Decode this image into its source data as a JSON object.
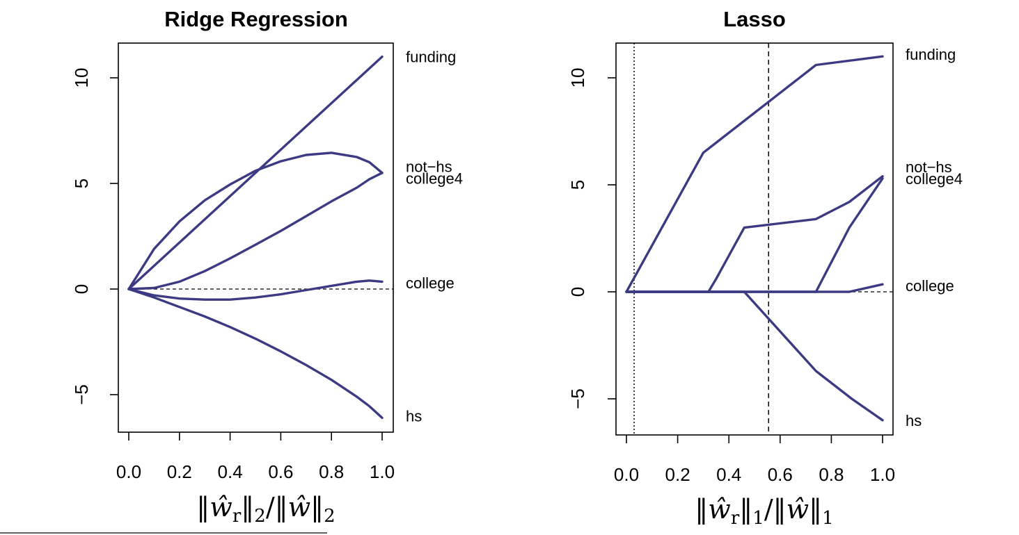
{
  "colors": {
    "series": "#3b3a83",
    "axis": "#000000",
    "background": "#ffffff"
  },
  "chart_data": [
    {
      "type": "line",
      "title": "Ridge Regression",
      "xlabel": "||ŵ_r||_2/||ŵ||_2",
      "ylabel": "",
      "xlim": [
        0.0,
        1.0
      ],
      "ylim": [
        -6.8,
        11.7
      ],
      "x_ticks": [
        "0.0",
        "0.2",
        "0.4",
        "0.6",
        "0.8",
        "1.0"
      ],
      "y_ticks": [
        "−5",
        "0",
        "5",
        "10"
      ],
      "reference_line": {
        "y": 0,
        "style": "dashed"
      },
      "grid": false,
      "series": [
        {
          "name": "funding",
          "x": [
            0.0,
            0.2,
            0.4,
            0.6,
            0.8,
            1.0
          ],
          "y": [
            0.0,
            2.2,
            4.4,
            6.6,
            8.8,
            11.0
          ]
        },
        {
          "name": "not–hs",
          "x": [
            0.0,
            0.1,
            0.2,
            0.3,
            0.4,
            0.5,
            0.6,
            0.7,
            0.8,
            0.9,
            0.95,
            1.0
          ],
          "y": [
            0.0,
            1.9,
            3.2,
            4.2,
            4.95,
            5.6,
            6.05,
            6.35,
            6.45,
            6.25,
            6.0,
            5.5
          ]
        },
        {
          "name": "college4",
          "x": [
            0.0,
            0.1,
            0.2,
            0.3,
            0.4,
            0.5,
            0.6,
            0.7,
            0.8,
            0.9,
            0.95,
            1.0
          ],
          "y": [
            0.0,
            0.05,
            0.35,
            0.85,
            1.45,
            2.1,
            2.75,
            3.45,
            4.15,
            4.8,
            5.2,
            5.5
          ]
        },
        {
          "name": "college",
          "x": [
            0.0,
            0.1,
            0.2,
            0.3,
            0.4,
            0.5,
            0.6,
            0.7,
            0.8,
            0.9,
            0.95,
            1.0
          ],
          "y": [
            0.0,
            -0.3,
            -0.45,
            -0.5,
            -0.5,
            -0.4,
            -0.25,
            -0.05,
            0.15,
            0.35,
            0.4,
            0.35
          ]
        },
        {
          "name": "hs",
          "x": [
            0.0,
            0.1,
            0.2,
            0.3,
            0.4,
            0.5,
            0.6,
            0.7,
            0.8,
            0.9,
            0.95,
            1.0
          ],
          "y": [
            0.0,
            -0.4,
            -0.85,
            -1.3,
            -1.8,
            -2.35,
            -2.95,
            -3.6,
            -4.3,
            -5.1,
            -5.55,
            -6.1
          ]
        }
      ],
      "end_labels": [
        {
          "text": "funding",
          "y": 11.0
        },
        {
          "text": "not−hs",
          "y": 5.8
        },
        {
          "text": "college4",
          "y": 5.25
        },
        {
          "text": "college",
          "y": 0.3
        },
        {
          "text": "hs",
          "y": -6.0
        }
      ]
    },
    {
      "type": "line",
      "title": "Lasso",
      "xlabel": "||ŵ_r||_1/||ŵ||_1",
      "ylabel": "",
      "xlim": [
        0.0,
        1.0
      ],
      "ylim": [
        -6.6,
        11.7
      ],
      "x_ticks": [
        "0.0",
        "0.2",
        "0.4",
        "0.6",
        "0.8",
        "1.0"
      ],
      "y_ticks": [
        "−5",
        "0",
        "5",
        "10"
      ],
      "reference_line": {
        "y": 0,
        "style": "dashed"
      },
      "vertical_lines": [
        {
          "x": 0.03,
          "style": "dotted"
        },
        {
          "x": 0.555,
          "style": "dashed"
        }
      ],
      "grid": false,
      "series": [
        {
          "name": "funding",
          "x": [
            0.0,
            0.3,
            0.74,
            1.0
          ],
          "y": [
            0.0,
            6.5,
            10.6,
            11.0
          ]
        },
        {
          "name": "not–hs",
          "x": [
            0.0,
            0.32,
            0.35,
            0.46,
            0.74,
            0.87,
            1.0
          ],
          "y": [
            0.0,
            0.0,
            0.6,
            3.0,
            3.4,
            4.2,
            5.4
          ]
        },
        {
          "name": "college4",
          "x": [
            0.0,
            0.74,
            0.87,
            1.0
          ],
          "y": [
            0.0,
            0.0,
            3.0,
            5.3
          ]
        },
        {
          "name": "college",
          "x": [
            0.0,
            0.87,
            1.0
          ],
          "y": [
            0.0,
            0.0,
            0.35
          ]
        },
        {
          "name": "hs",
          "x": [
            0.0,
            0.46,
            0.74,
            0.88,
            1.0
          ],
          "y": [
            0.0,
            0.0,
            -3.7,
            -5.0,
            -6.0
          ]
        }
      ],
      "end_labels": [
        {
          "text": "funding",
          "y": 11.1
        },
        {
          "text": "not−hs",
          "y": 5.85
        },
        {
          "text": "college4",
          "y": 5.3
        },
        {
          "text": "college",
          "y": 0.3
        },
        {
          "text": "hs",
          "y": -6.0
        }
      ]
    }
  ]
}
